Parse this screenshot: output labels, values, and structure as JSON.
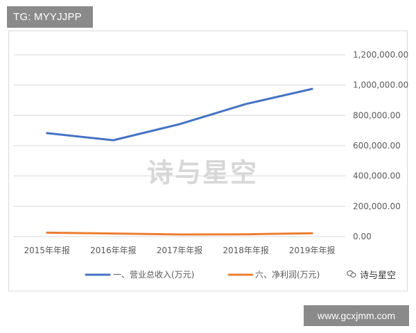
{
  "header": {
    "tag_text": "TG: MYYJJPP"
  },
  "footer": {
    "site_text": "www.gcxjmm.com"
  },
  "watermark": {
    "text": "诗与星空",
    "brand_text": "诗与星空"
  },
  "colors": {
    "series1": "#4472c4",
    "series2": "#ed7d31",
    "grid": "#d9d9d9",
    "badge": "#8a8a8a"
  },
  "chart_data": {
    "type": "line",
    "categories": [
      "2015年年报",
      "2016年年报",
      "2017年年报",
      "2018年年报",
      "2019年年报"
    ],
    "series": [
      {
        "name": "一、营业总收入(万元)",
        "values": [
          683000,
          636000,
          742000,
          875000,
          975000
        ]
      },
      {
        "name": "六、净利润(万元)",
        "values": [
          26000,
          20000,
          14000,
          15000,
          22000
        ]
      }
    ],
    "ylim": [
      0,
      1200000
    ],
    "y_ticks": [
      "1,200,000.00",
      "1,000,000.00",
      "800,000.00",
      "600,000.00",
      "400,000.00",
      "200,000.00",
      "0.00"
    ],
    "y_axis_side": "right",
    "grid": true,
    "legend_position": "bottom"
  }
}
